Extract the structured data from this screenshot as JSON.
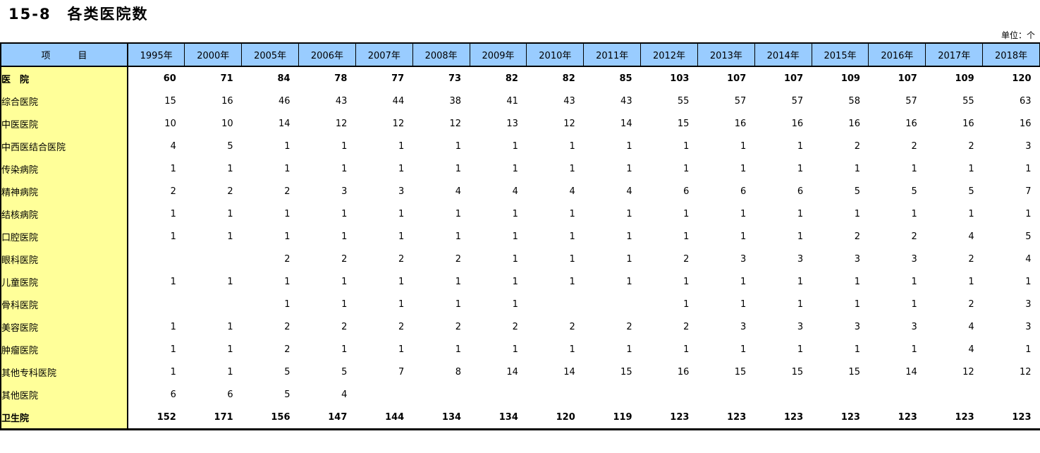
{
  "title": "15-8　各类医院数",
  "unit": "单位：个",
  "colors": {
    "header_bg": "#99CCFF",
    "label_bg": "#FFFF99",
    "border": "#000000"
  },
  "table": {
    "item_header": "项　　　目",
    "years": [
      "1995年",
      "2000年",
      "2005年",
      "2006年",
      "2007年",
      "2008年",
      "2009年",
      "2010年",
      "2011年",
      "2012年",
      "2013年",
      "2014年",
      "2015年",
      "2016年",
      "2017年",
      "2018年"
    ],
    "rows": [
      {
        "label": "医　院",
        "indent": 0,
        "bold": true,
        "values": [
          60,
          71,
          84,
          78,
          77,
          73,
          82,
          82,
          85,
          103,
          107,
          107,
          109,
          107,
          109,
          120
        ]
      },
      {
        "label": "综合医院",
        "indent": 1,
        "bold": false,
        "values": [
          15,
          16,
          46,
          43,
          44,
          38,
          41,
          43,
          43,
          55,
          57,
          57,
          58,
          57,
          55,
          63
        ]
      },
      {
        "label": "中医医院",
        "indent": 1,
        "bold": false,
        "values": [
          10,
          10,
          14,
          12,
          12,
          12,
          13,
          12,
          14,
          15,
          16,
          16,
          16,
          16,
          16,
          16
        ]
      },
      {
        "label": "中西医结合医院",
        "indent": 1,
        "bold": false,
        "values": [
          4,
          5,
          1,
          1,
          1,
          1,
          1,
          1,
          1,
          1,
          1,
          1,
          2,
          2,
          2,
          3
        ]
      },
      {
        "label": "传染病院",
        "indent": 1,
        "bold": false,
        "values": [
          1,
          1,
          1,
          1,
          1,
          1,
          1,
          1,
          1,
          1,
          1,
          1,
          1,
          1,
          1,
          1
        ]
      },
      {
        "label": "精神病院",
        "indent": 1,
        "bold": false,
        "values": [
          2,
          2,
          2,
          3,
          3,
          4,
          4,
          4,
          4,
          6,
          6,
          6,
          5,
          5,
          5,
          7
        ]
      },
      {
        "label": "结核病院",
        "indent": 1,
        "bold": false,
        "values": [
          1,
          1,
          1,
          1,
          1,
          1,
          1,
          1,
          1,
          1,
          1,
          1,
          1,
          1,
          1,
          1
        ]
      },
      {
        "label": "口腔医院",
        "indent": 2,
        "bold": false,
        "values": [
          1,
          1,
          1,
          1,
          1,
          1,
          1,
          1,
          1,
          1,
          1,
          1,
          2,
          2,
          4,
          5
        ]
      },
      {
        "label": "眼科医院",
        "indent": 2,
        "bold": false,
        "values": [
          "",
          "",
          2,
          2,
          2,
          2,
          1,
          1,
          1,
          2,
          3,
          3,
          3,
          3,
          2,
          4
        ]
      },
      {
        "label": "儿童医院",
        "indent": 1,
        "bold": false,
        "values": [
          1,
          1,
          1,
          1,
          1,
          1,
          1,
          1,
          1,
          1,
          1,
          1,
          1,
          1,
          1,
          1
        ]
      },
      {
        "label": "骨科医院",
        "indent": 2,
        "bold": false,
        "values": [
          "",
          "",
          1,
          1,
          1,
          1,
          1,
          "",
          "",
          1,
          1,
          1,
          1,
          1,
          2,
          3
        ]
      },
      {
        "label": "美容医院",
        "indent": 1,
        "bold": false,
        "values": [
          1,
          1,
          2,
          2,
          2,
          2,
          2,
          2,
          2,
          2,
          3,
          3,
          3,
          3,
          4,
          3
        ]
      },
      {
        "label": "肿瘤医院",
        "indent": 1,
        "bold": false,
        "values": [
          1,
          1,
          2,
          1,
          1,
          1,
          1,
          1,
          1,
          1,
          1,
          1,
          1,
          1,
          4,
          1
        ]
      },
      {
        "label": "其他专科医院",
        "indent": 1,
        "bold": false,
        "values": [
          1,
          1,
          5,
          5,
          7,
          8,
          14,
          14,
          15,
          16,
          15,
          15,
          15,
          14,
          12,
          12
        ]
      },
      {
        "label": "其他医院",
        "indent": 1,
        "bold": false,
        "values": [
          6,
          6,
          5,
          4,
          "",
          "",
          "",
          "",
          "",
          "",
          "",
          "",
          "",
          "",
          "",
          ""
        ]
      },
      {
        "label": "卫生院",
        "indent": 0,
        "bold": true,
        "values": [
          152,
          171,
          156,
          147,
          144,
          134,
          134,
          120,
          119,
          123,
          123,
          123,
          123,
          123,
          123,
          123
        ]
      }
    ]
  }
}
